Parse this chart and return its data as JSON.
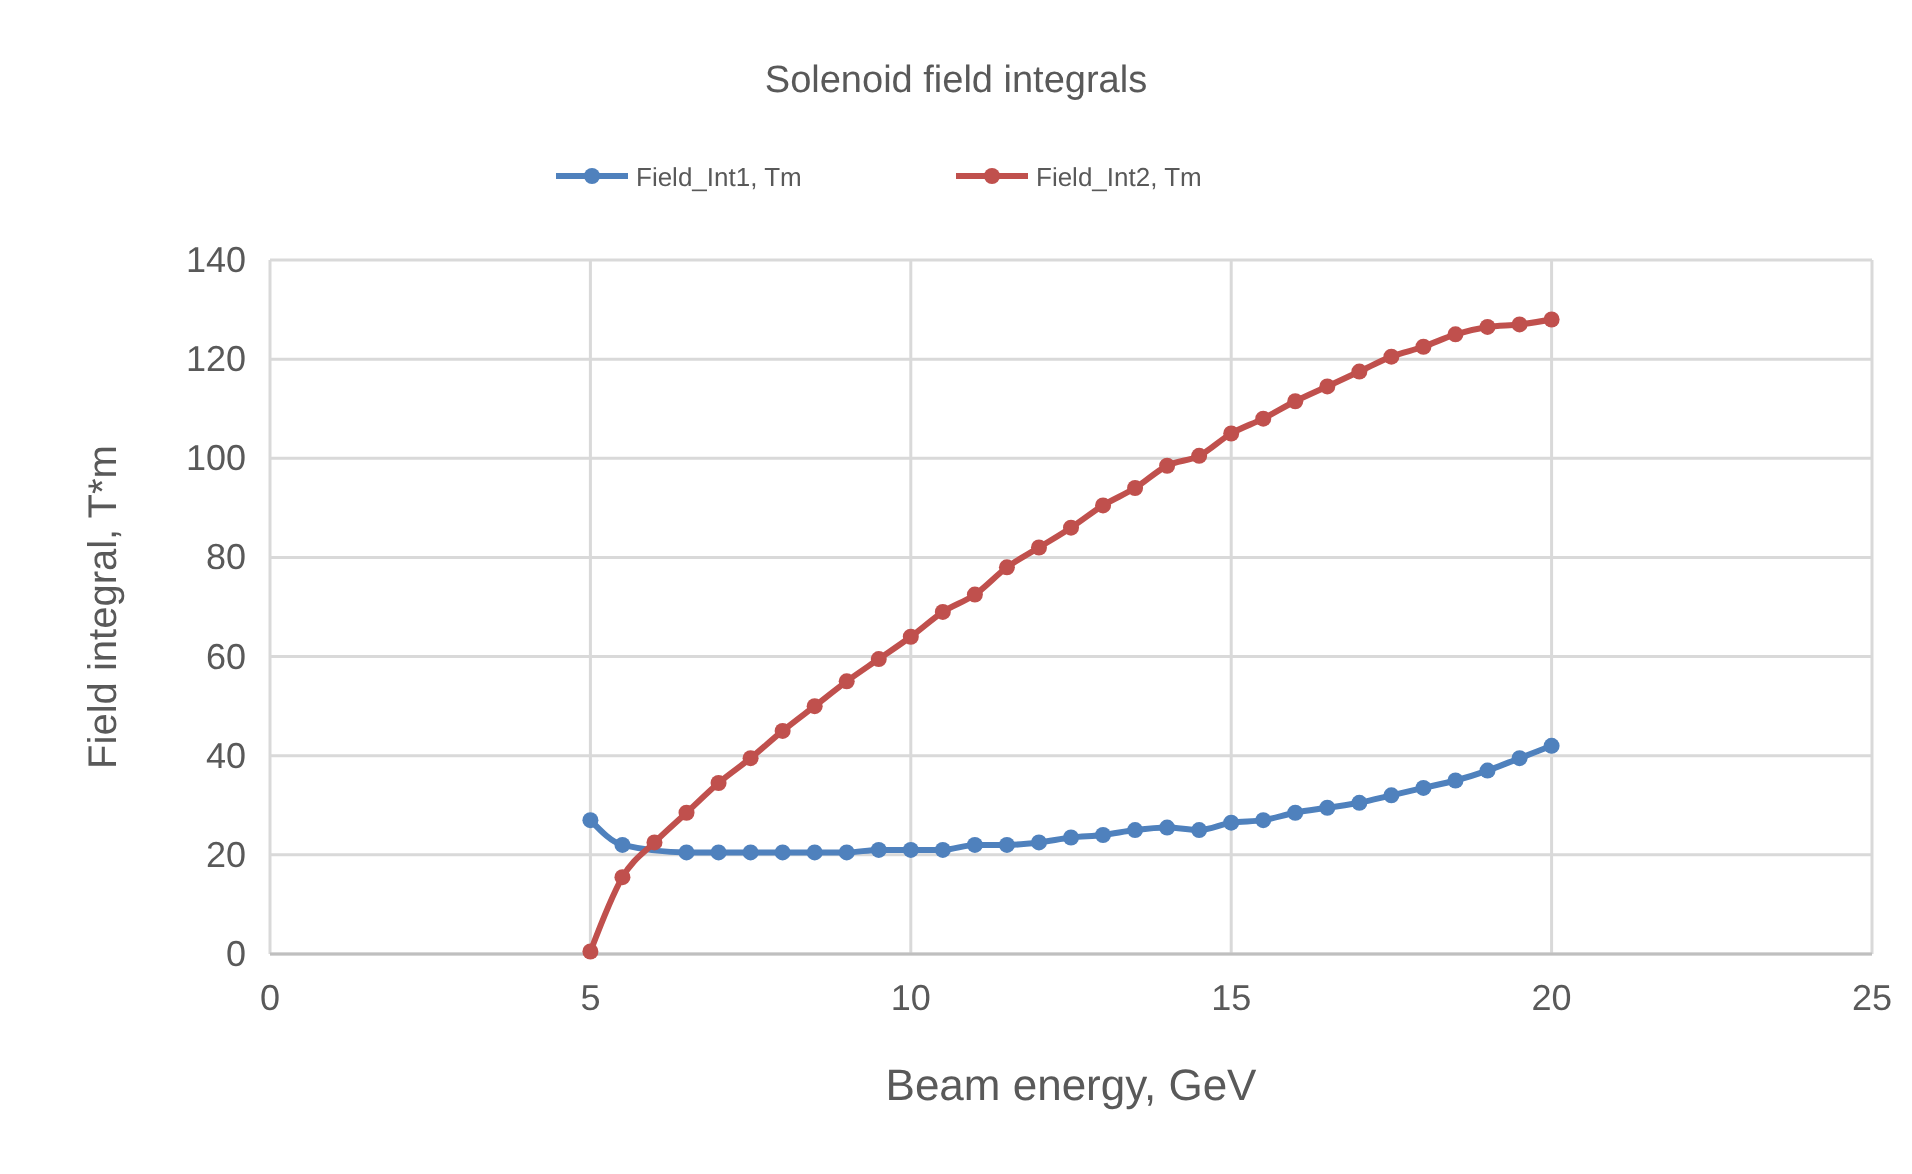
{
  "chart_data": {
    "type": "line",
    "title": "Solenoid field integrals",
    "xlabel": "Beam energy, GeV",
    "ylabel": "Field integral, T*m",
    "x": [
      5,
      5.5,
      6,
      6.5,
      7,
      7.5,
      8,
      8.5,
      9,
      9.5,
      10,
      10.5,
      11,
      11.5,
      12,
      12.5,
      13,
      13.5,
      14,
      14.5,
      15,
      15.5,
      16,
      16.5,
      17,
      17.5,
      18,
      18.5,
      19,
      19.5,
      20
    ],
    "series": [
      {
        "name": "Field_Int1, Tm",
        "color": "#4f81bd",
        "values": [
          27,
          22,
          null,
          20.5,
          20.5,
          20.5,
          20.5,
          20.5,
          20.5,
          21,
          21,
          21,
          22,
          22,
          22.5,
          23.5,
          24,
          25,
          25.5,
          25,
          26.5,
          27,
          28.5,
          29.5,
          30.5,
          32,
          33.5,
          35,
          37,
          39.5,
          42
        ]
      },
      {
        "name": "Field_Int2, Tm",
        "color": "#c0504d",
        "values": [
          0.5,
          15.5,
          22.5,
          28.5,
          34.5,
          39.5,
          45,
          50,
          55,
          59.5,
          64,
          69,
          72.5,
          78,
          82,
          86,
          90.5,
          94,
          98.5,
          100.5,
          105,
          108,
          111.5,
          114.5,
          117.5,
          120.5,
          122.5,
          125,
          126.5,
          127,
          128
        ]
      }
    ],
    "xlim": [
      0,
      25
    ],
    "xticks": [
      0,
      5,
      10,
      15,
      20,
      25
    ],
    "ylim": [
      0,
      140
    ],
    "yticks": [
      0,
      20,
      40,
      60,
      80,
      100,
      120,
      140
    ],
    "grid": true,
    "legend": "top",
    "marker": "circle",
    "line_style": "solid"
  }
}
